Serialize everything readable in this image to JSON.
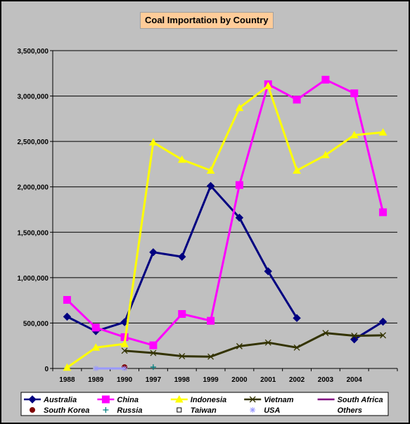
{
  "chart_data": {
    "type": "line",
    "title": "Coal Importation by Country",
    "xlabel": "",
    "ylabel": "",
    "categories": [
      "1988",
      "1989",
      "1990",
      "1997",
      "1998",
      "1999",
      "2000",
      "2001",
      "2002",
      "2003",
      "2004",
      ""
    ],
    "y_ticks": [
      "0",
      "500,000",
      "1,000,000",
      "1,500,000",
      "2,000,000",
      "2,500,000",
      "3,000,000",
      "3,500,000"
    ],
    "ylim": [
      0,
      3500000
    ],
    "grid": "horizontal",
    "legend_position": "bottom",
    "series": [
      {
        "name": "Australia",
        "color": "#000080",
        "marker": "diamond",
        "values": [
          570000,
          410000,
          510000,
          1280000,
          1230000,
          2010000,
          1660000,
          1070000,
          555000,
          null,
          320000,
          515000
        ]
      },
      {
        "name": "China",
        "color": "#ff00ff",
        "marker": "square",
        "values": [
          755000,
          450000,
          345000,
          255000,
          600000,
          525000,
          2020000,
          3130000,
          2960000,
          3180000,
          3030000,
          1720000
        ]
      },
      {
        "name": "Indonesia",
        "color": "#ffff00",
        "marker": "triangle",
        "values": [
          10000,
          230000,
          270000,
          2490000,
          2300000,
          2180000,
          2870000,
          3110000,
          2180000,
          2350000,
          2570000,
          2600000
        ]
      },
      {
        "name": "Vietnam",
        "color": "#333300",
        "marker": "x",
        "values": [
          null,
          null,
          195000,
          170000,
          135000,
          130000,
          245000,
          285000,
          230000,
          390000,
          360000,
          365000
        ]
      },
      {
        "name": "South Africa",
        "color": "#800080",
        "marker": "none",
        "values": [
          null,
          0,
          0,
          null,
          null,
          null,
          null,
          null,
          null,
          null,
          null,
          null
        ]
      },
      {
        "name": "South Korea",
        "color": "#800000",
        "marker": "circle",
        "values": [
          null,
          null,
          15000,
          null,
          null,
          null,
          null,
          null,
          null,
          null,
          null,
          null
        ]
      },
      {
        "name": "Russia",
        "color": "#008080",
        "marker": "plus",
        "values": [
          null,
          null,
          null,
          15000,
          null,
          null,
          null,
          null,
          null,
          null,
          null,
          null
        ]
      },
      {
        "name": "Taiwan",
        "color": "#000000",
        "marker": "open-square",
        "values": [
          null,
          null,
          null,
          null,
          null,
          null,
          null,
          null,
          null,
          null,
          null,
          null
        ]
      },
      {
        "name": "USA",
        "color": "#9999ff",
        "marker": "star",
        "values": [
          null,
          0,
          0,
          null,
          null,
          null,
          null,
          null,
          null,
          null,
          null,
          null
        ]
      },
      {
        "name": "Others",
        "color": "#ccffff",
        "marker": "none",
        "values": [
          null,
          null,
          null,
          null,
          null,
          null,
          null,
          null,
          null,
          null,
          null,
          null
        ]
      }
    ]
  }
}
